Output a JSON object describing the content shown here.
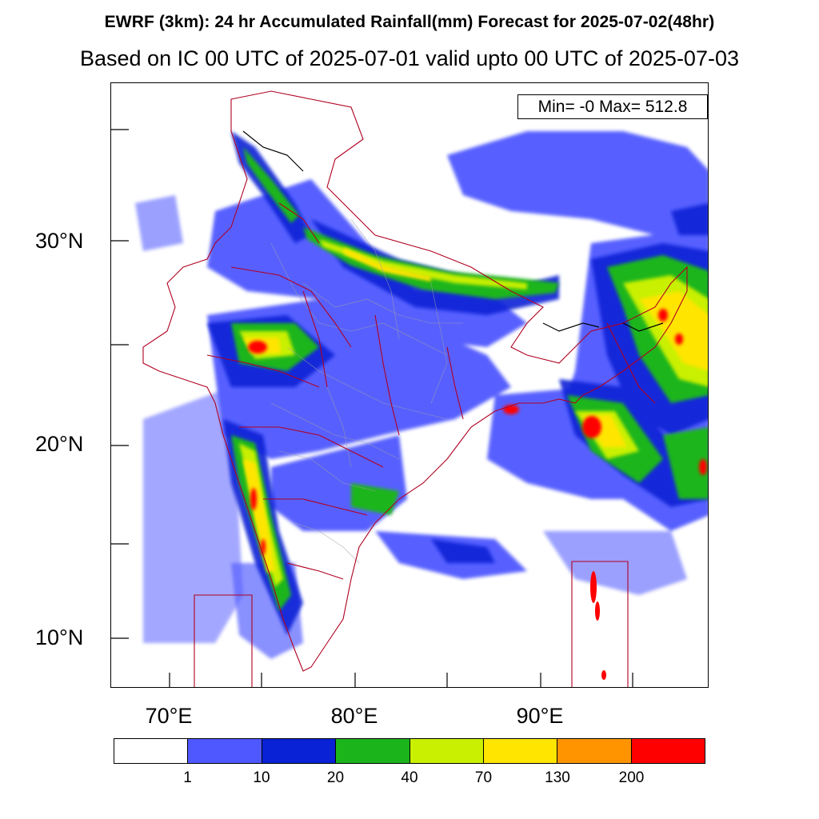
{
  "header": {
    "title": "EWRF (3km): 24 hr Accumulated Rainfall(mm) Forecast for 2025-07-02(48hr)",
    "subtitle": "Based on IC 00 UTC of 2025-07-01 valid upto 00 UTC of 2025-07-03"
  },
  "map": {
    "minmax_label": "Min= -0 Max= 512.8",
    "lat_labels": [
      "30°N",
      "20°N",
      "10°N"
    ],
    "lon_labels": [
      "70°E",
      "80°E",
      "90°E"
    ]
  },
  "legend": {
    "colors": [
      "#ffffff",
      "#4f58ff",
      "#0a22d6",
      "#1bb51b",
      "#c8f000",
      "#ffe500",
      "#ff9400",
      "#ff0000"
    ],
    "ticks": [
      "1",
      "10",
      "20",
      "40",
      "70",
      "130",
      "200"
    ]
  },
  "colors": {
    "boundary_state": "#b00020",
    "boundary_district": "#a0a0a0",
    "international": "#000000"
  }
}
